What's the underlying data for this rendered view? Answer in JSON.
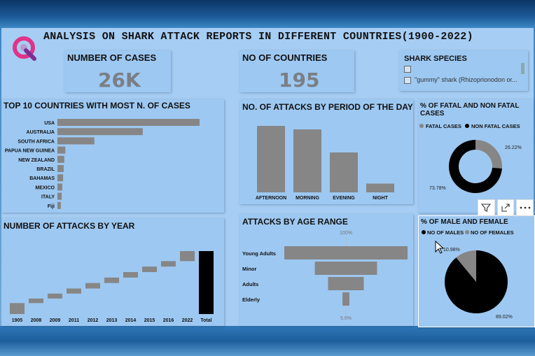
{
  "header": {
    "title": "ANALYSIS ON SHARK ATTACK REPORTS IN DIFFERENT COUNTRIES(1900-2022)",
    "logo_icon": "q-logo-icon"
  },
  "kpis": {
    "cases": {
      "label": "NUMBER OF CASES",
      "value": "26K"
    },
    "countries": {
      "label": "NO OF COUNTRIES",
      "value": "195"
    }
  },
  "slicer": {
    "title": "SHARK SPECIES",
    "items": [
      "",
      "\"gummy\" shark (Rhizoprionodon or..."
    ]
  },
  "toolbar": {
    "icons": [
      "filter-icon",
      "focus-mode-icon",
      "more-options-icon"
    ]
  },
  "colors": {
    "bar": "#868686",
    "dark": "#000000",
    "panel": "#9dc8f1"
  },
  "charts": [
    {
      "id": "top10",
      "type": "bar",
      "orientation": "horizontal",
      "title": "TOP 10 COUNTRIES WITH MOST N. OF CASES",
      "categories": [
        "USA",
        "AUSTRALIA",
        "SOUTH AFRICA",
        "PAPUA NEW GUINEA",
        "NEW ZEALAND",
        "BRAZIL",
        "BAHAMAS",
        "MEXICO",
        "ITALY",
        "Fiji"
      ],
      "values": [
        2500,
        1500,
        650,
        140,
        120,
        110,
        100,
        85,
        75,
        60
      ],
      "xlim": [
        0,
        2500
      ]
    },
    {
      "id": "period",
      "type": "bar",
      "title": "NO. OF ATTACKS BY PERIOD OF THE DAY",
      "categories": [
        "AFTERNOON",
        "MORNING",
        "EVENING",
        "NIGHT"
      ],
      "values": [
        1900,
        1800,
        1140,
        250
      ],
      "ylim": [
        0,
        2200
      ]
    },
    {
      "id": "fatal",
      "type": "pie",
      "donut": true,
      "title": "% OF FATAL AND NON FATAL CASES",
      "legend": [
        "FATAL CASES",
        "NON FATAL CASES"
      ],
      "values": [
        26.22,
        73.78
      ],
      "labels": [
        "26.22%",
        "73.78%"
      ]
    },
    {
      "id": "year",
      "type": "bar",
      "waterfall": true,
      "title": "NUMBER OF ATTACKS BY YEAR",
      "categories": [
        "1905",
        "2008",
        "2009",
        "2011",
        "2012",
        "2013",
        "2014",
        "2015",
        "2016",
        "2022",
        "Total"
      ],
      "values": [
        60,
        25,
        27,
        28,
        30,
        30,
        30,
        30,
        30,
        55,
        345
      ],
      "ylim": [
        0,
        345
      ]
    },
    {
      "id": "age",
      "type": "funnel",
      "title": "ATTACKS BY AGE RANGE",
      "categories": [
        "Young Adults",
        "Minor",
        "Adults",
        "Elderly"
      ],
      "values": [
        100,
        50.5,
        29,
        5.6
      ],
      "top_label": "100%",
      "bottom_label": "5.6%"
    },
    {
      "id": "gender",
      "type": "pie",
      "title": "% OF MALE AND FEMALE",
      "legend": [
        "NO OF MALES",
        "NO OF FEMALES"
      ],
      "values": [
        89.02,
        10.98
      ],
      "labels": [
        "89.02%",
        "10.98%"
      ]
    }
  ]
}
